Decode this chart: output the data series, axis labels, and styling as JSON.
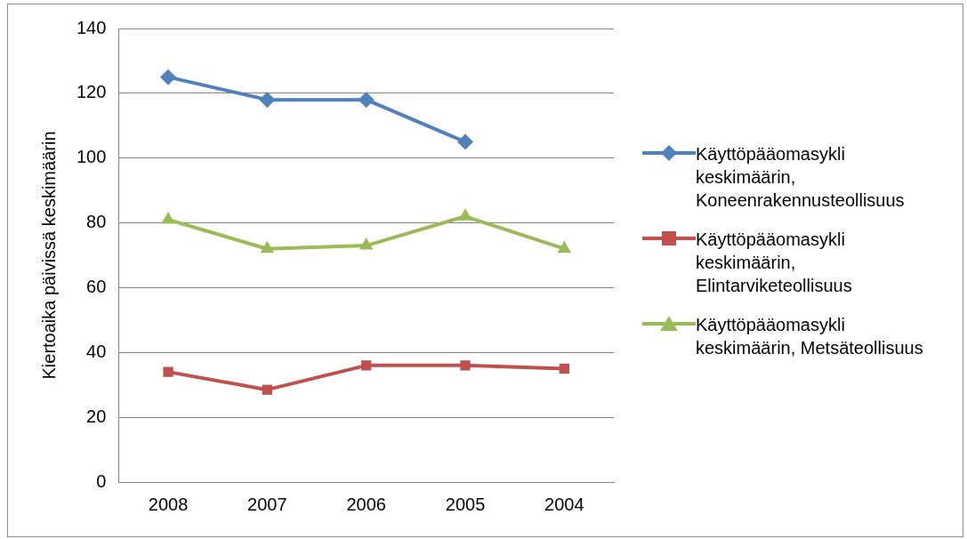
{
  "chart_data": {
    "type": "line",
    "ylabel": "Kiertoaika päivissä keskimäärin",
    "categories": [
      "2008",
      "2007",
      "2006",
      "2005",
      "2004"
    ],
    "ylim": [
      0,
      140
    ],
    "yticks": [
      0,
      20,
      40,
      60,
      80,
      100,
      120,
      140
    ],
    "grid": "y",
    "legend": "right",
    "line_style": "solid",
    "series": [
      {
        "name": "Käyttöpääomasykli keskimäärin, Koneenrakennusteollisuus",
        "color": "#4f81bd",
        "marker": "diamond",
        "values": [
          125,
          118,
          118,
          105,
          null
        ]
      },
      {
        "name": "Käyttöpääomasykli keskimäärin, Elintarviketeollisuus",
        "color": "#c0504d",
        "marker": "square",
        "values": [
          34,
          28.5,
          36,
          36,
          35
        ]
      },
      {
        "name": "Käyttöpääomasykli keskimäärin, Metsäteollisuus",
        "color": "#9bbb59",
        "marker": "triangle",
        "values": [
          81,
          72,
          73,
          82,
          72
        ]
      }
    ]
  }
}
